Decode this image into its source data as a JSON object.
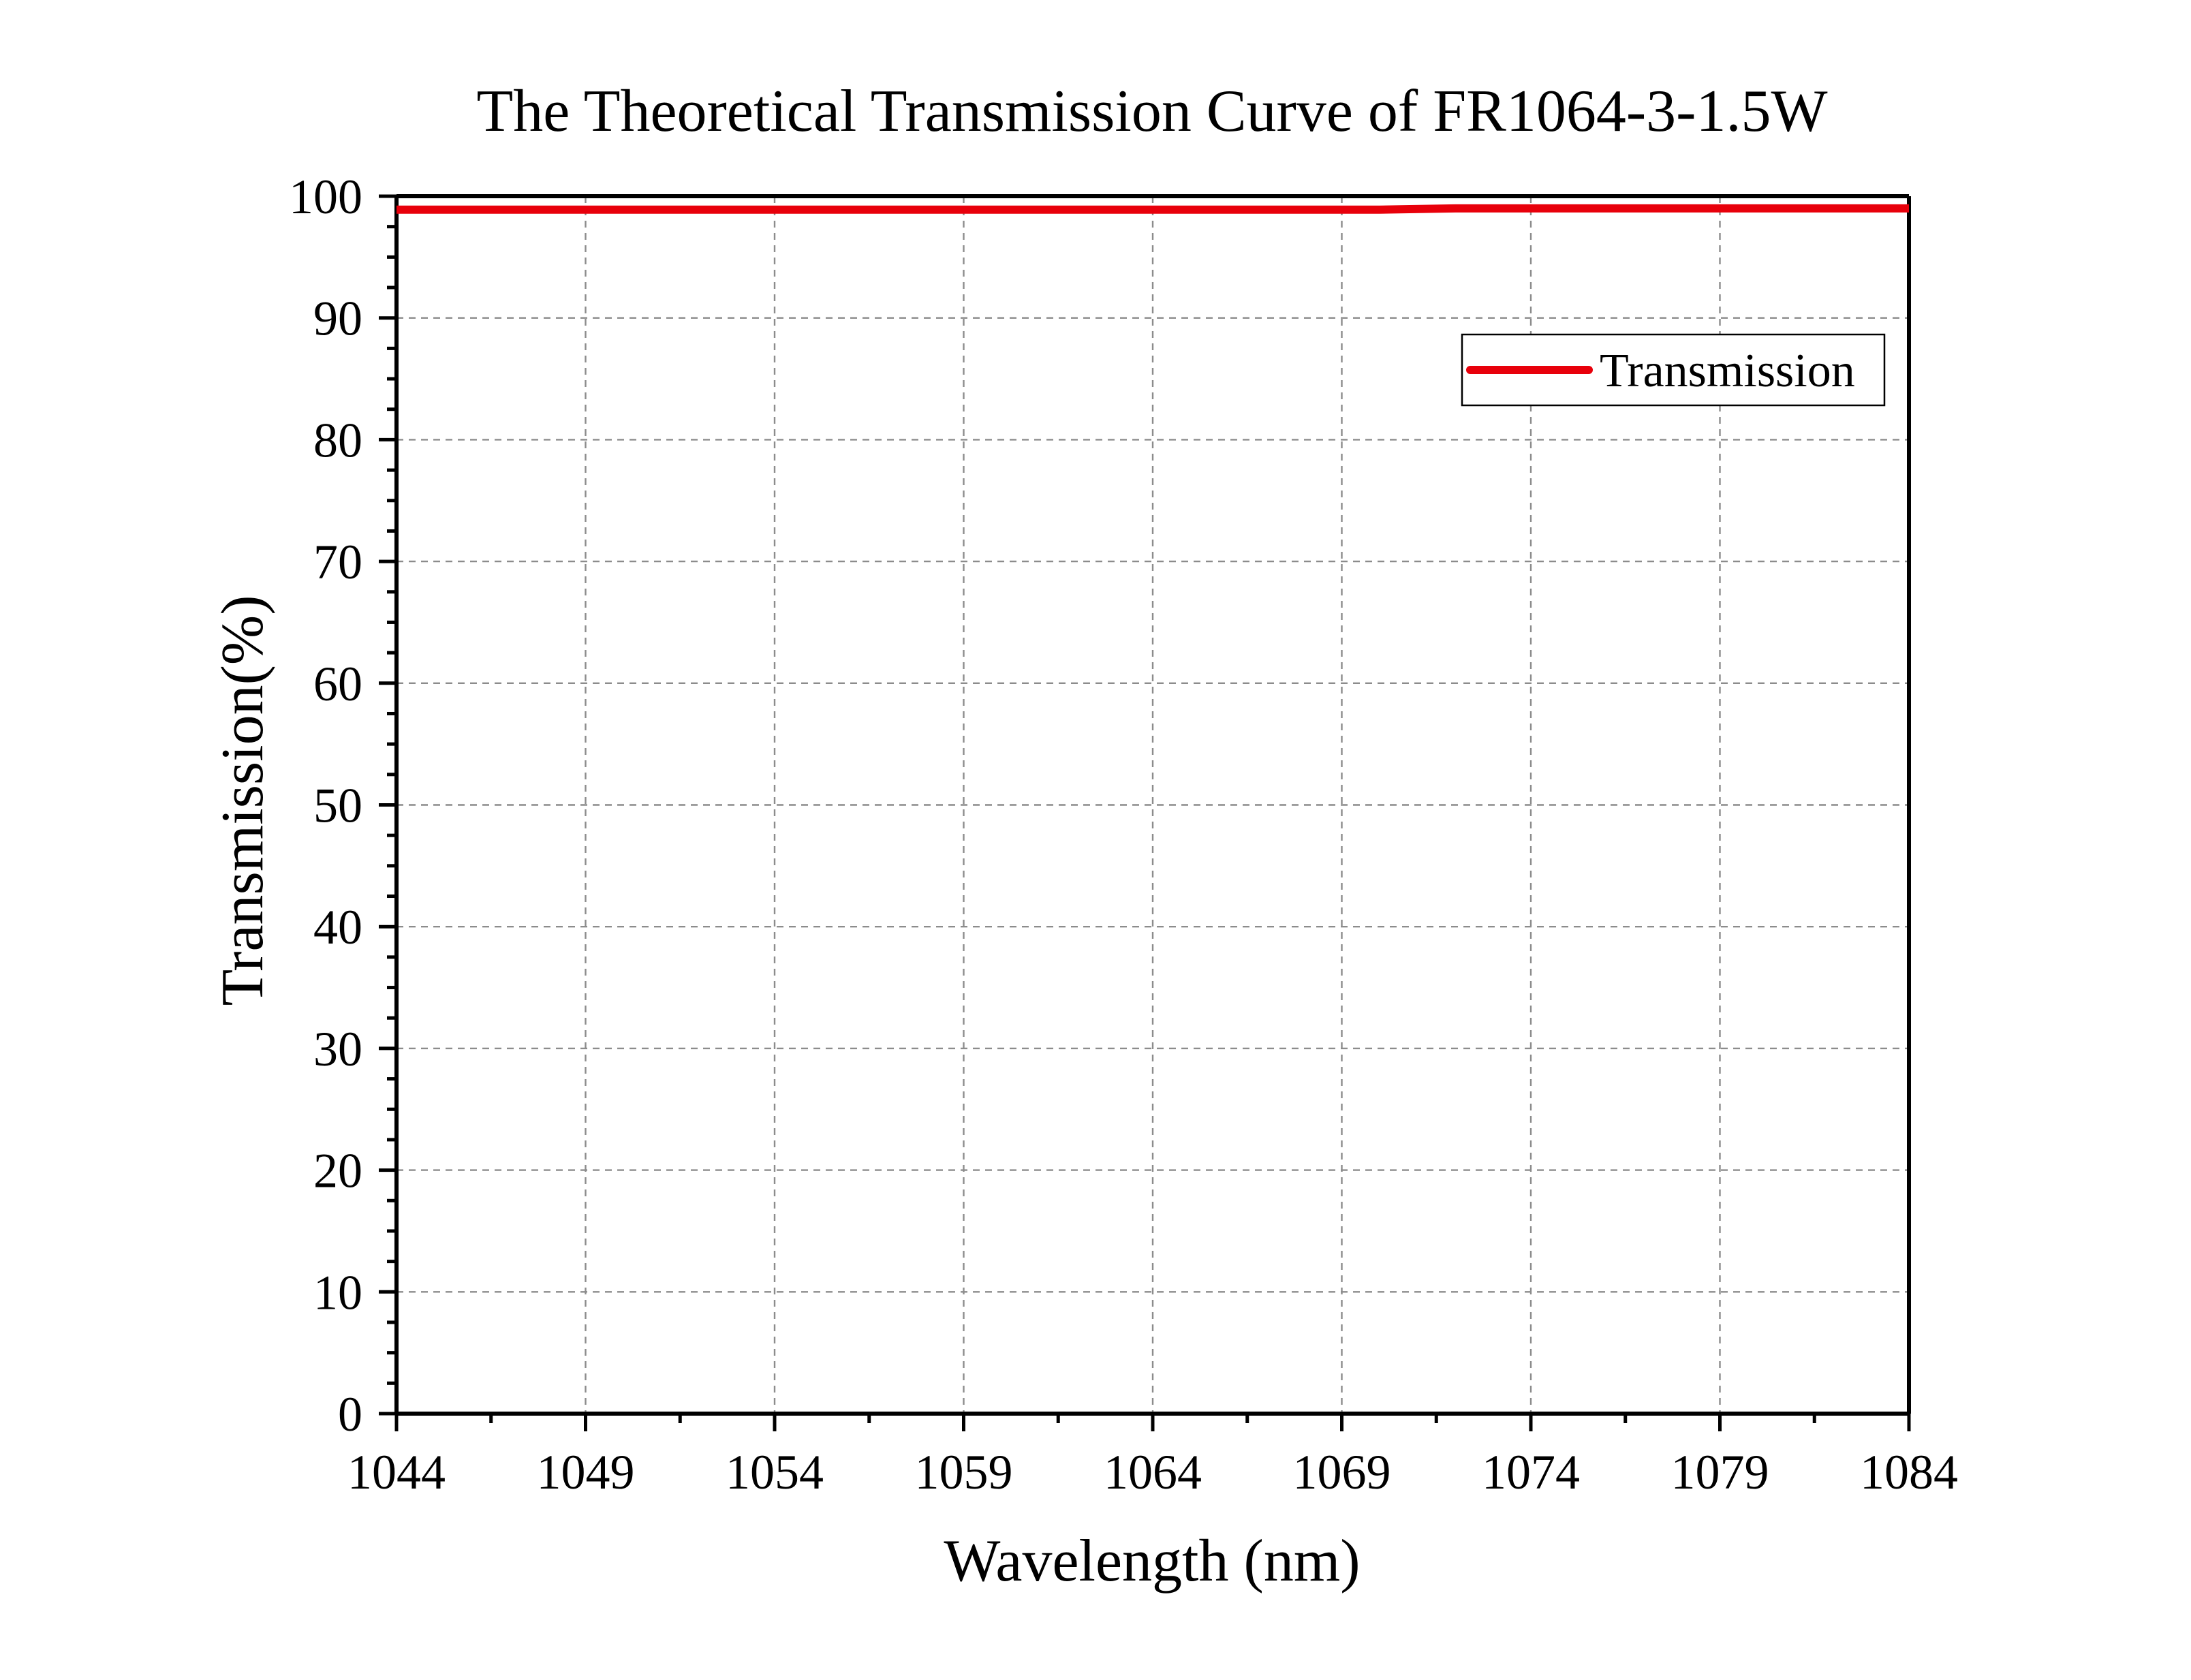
{
  "chart_data": {
    "type": "line",
    "title": "The Theoretical Transmission Curve of FR1064-3-1.5W",
    "xlabel": "Wavelength (nm)",
    "ylabel": "Transmission(%)",
    "xlim": [
      1044,
      1084
    ],
    "ylim": [
      0,
      100
    ],
    "x_ticks": [
      "1044",
      "1049",
      "1054",
      "1059",
      "1064",
      "1069",
      "1074",
      "1079",
      "1084"
    ],
    "y_ticks": [
      "0",
      "10",
      "20",
      "30",
      "40",
      "50",
      "60",
      "70",
      "80",
      "90",
      "100"
    ],
    "grid": true,
    "legend_position": "top-right",
    "series": [
      {
        "name": "Transmission",
        "color": "#e8000b",
        "x": [
          1044,
          1046,
          1048,
          1050,
          1052,
          1054,
          1056,
          1058,
          1060,
          1062,
          1064,
          1066,
          1068,
          1070,
          1072,
          1074,
          1076,
          1078,
          1080,
          1082,
          1084
        ],
        "y": [
          98.9,
          98.9,
          98.9,
          98.9,
          98.9,
          98.9,
          98.9,
          98.9,
          98.9,
          98.9,
          98.9,
          98.9,
          98.9,
          98.9,
          99.0,
          99.0,
          99.0,
          99.0,
          99.0,
          99.0,
          99.0
        ]
      }
    ]
  }
}
